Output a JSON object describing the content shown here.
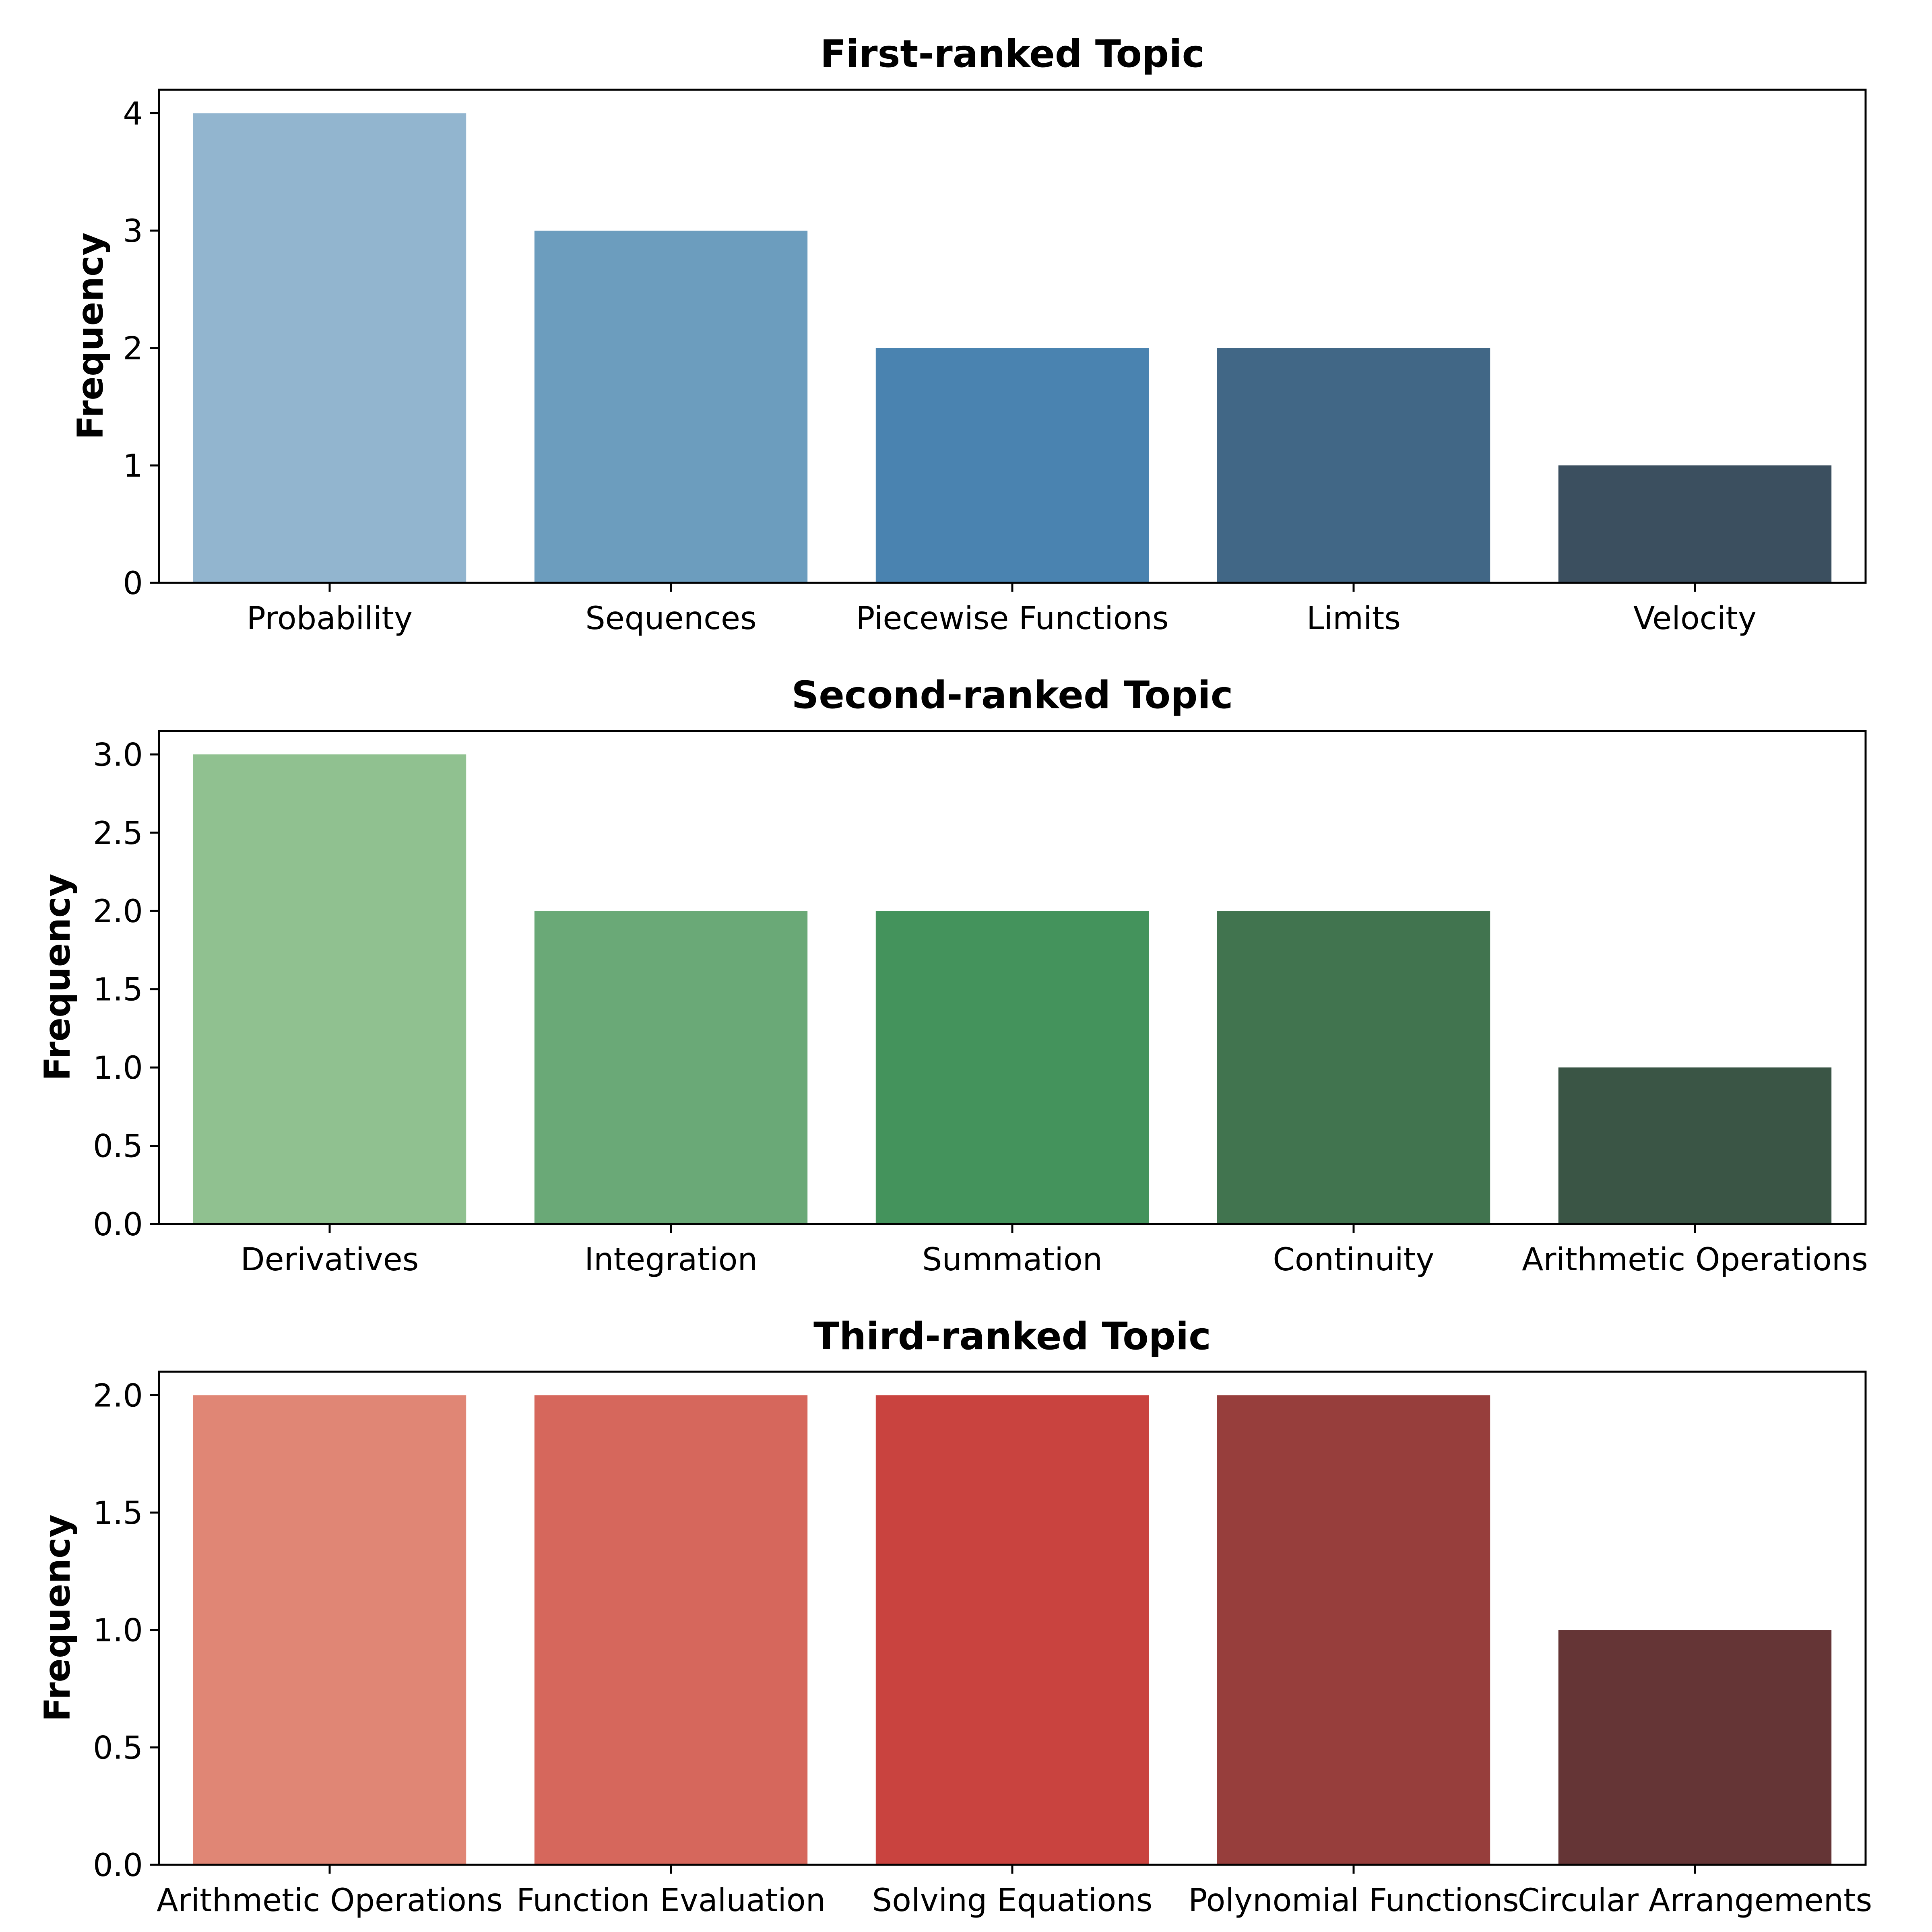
{
  "chart_data": [
    {
      "type": "bar",
      "title": "First-ranked Topic",
      "xlabel": "",
      "ylabel": "Frequency",
      "categories": [
        "Probability",
        "Sequences",
        "Piecewise Functions",
        "Limits",
        "Velocity"
      ],
      "values": [
        4,
        3,
        2,
        2,
        1
      ],
      "colors": [
        "#92b5cf",
        "#6c9dbe",
        "#4a83b0",
        "#416786",
        "#3b4f5f"
      ],
      "ylim": [
        0,
        4.2
      ],
      "yticks": [
        0,
        1,
        2,
        3,
        4
      ],
      "ytick_labels": [
        "0",
        "1",
        "2",
        "3",
        "4"
      ],
      "grid": false
    },
    {
      "type": "bar",
      "title": "Second-ranked Topic",
      "xlabel": "",
      "ylabel": "Frequency",
      "categories": [
        "Derivatives",
        "Integration",
        "Summation",
        "Continuity",
        "Arithmetic Operations"
      ],
      "values": [
        3,
        2,
        2,
        2,
        1
      ],
      "colors": [
        "#90c190",
        "#6aa977",
        "#44935c",
        "#41744f",
        "#3a5545"
      ],
      "ylim": [
        0,
        3.15
      ],
      "yticks": [
        0,
        0.5,
        1,
        1.5,
        2,
        2.5,
        3
      ],
      "ytick_labels": [
        "0.0",
        "0.5",
        "1.0",
        "1.5",
        "2.0",
        "2.5",
        "3.0"
      ],
      "grid": false
    },
    {
      "type": "bar",
      "title": "Third-ranked Topic",
      "xlabel": "",
      "ylabel": "Frequency",
      "categories": [
        "Arithmetic Operations",
        "Function Evaluation",
        "Solving Equations",
        "Polynomial Functions",
        "Circular Arrangements"
      ],
      "values": [
        2,
        2,
        2,
        2,
        1
      ],
      "colors": [
        "#e08675",
        "#d6675c",
        "#c9433f",
        "#973e3c",
        "#653536"
      ],
      "ylim": [
        0,
        2.1
      ],
      "yticks": [
        0,
        0.5,
        1,
        1.5,
        2
      ],
      "ytick_labels": [
        "0.0",
        "0.5",
        "1.0",
        "1.5",
        "2.0"
      ],
      "grid": false
    }
  ]
}
